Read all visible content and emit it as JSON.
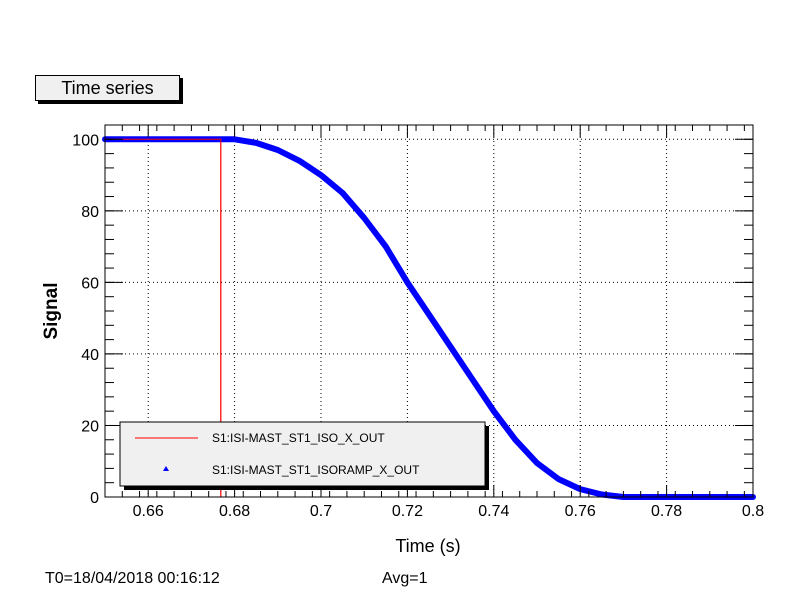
{
  "chart_data": {
    "type": "line",
    "title": "Time series",
    "xlabel": "Time (s)",
    "ylabel": "Signal",
    "xlim": [
      0.65,
      0.8
    ],
    "ylim": [
      0,
      104
    ],
    "xticks": [
      0.66,
      0.68,
      0.7,
      0.72,
      0.74,
      0.76,
      0.78,
      0.8
    ],
    "xtick_labels": [
      "0.66",
      "0.68",
      "0.7",
      "0.72",
      "0.74",
      "0.76",
      "0.78",
      "0.8"
    ],
    "yticks": [
      0,
      20,
      40,
      60,
      80,
      100
    ],
    "ytick_labels": [
      "0",
      "20",
      "40",
      "60",
      "80",
      "100"
    ],
    "grid": true,
    "legend_position": "bottom-left",
    "series": [
      {
        "name": "S1:ISI-MAST_ST1_ISO_X_OUT",
        "color": "#ff0000",
        "marker": "line",
        "x": [
          0.65,
          0.6768,
          0.6768,
          0.8
        ],
        "y": [
          100,
          100,
          0,
          0
        ]
      },
      {
        "name": "S1:ISI-MAST_ST1_ISORAMP_X_OUT",
        "color": "#0000ff",
        "marker": "triangle",
        "x": [
          0.65,
          0.67,
          0.68,
          0.685,
          0.69,
          0.695,
          0.7,
          0.705,
          0.71,
          0.715,
          0.72,
          0.725,
          0.73,
          0.735,
          0.74,
          0.745,
          0.75,
          0.755,
          0.76,
          0.765,
          0.77,
          0.78,
          0.8
        ],
        "y": [
          100,
          100,
          100,
          99,
          97,
          94,
          90,
          85,
          78,
          70,
          60,
          51,
          42,
          33,
          24,
          16,
          9.5,
          5,
          2.2,
          0.7,
          0,
          0,
          0
        ]
      }
    ]
  },
  "footer": {
    "t0": "T0=18/04/2018 00:16:12",
    "avg": "Avg=1"
  }
}
